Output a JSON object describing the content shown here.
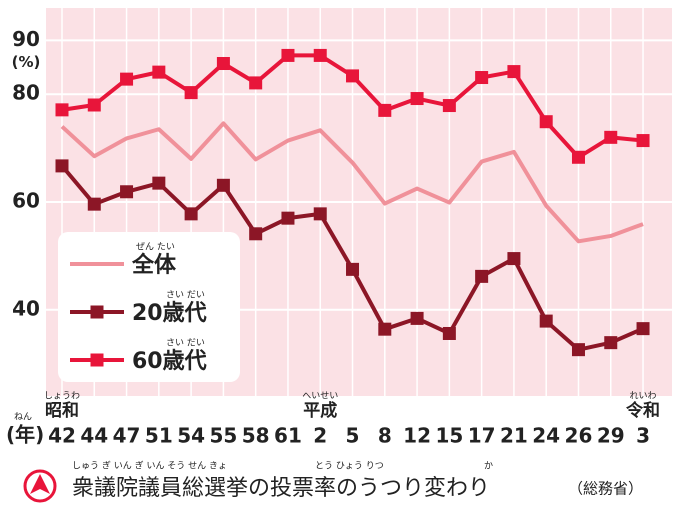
{
  "chart_data": {
    "type": "line",
    "title": "衆議院議員総選挙の投票率のうつり変わり",
    "title_ruby": [
      "しゅう ぎ いん ぎ いん そう せん きょ",
      "とう ひょう りつ",
      "か"
    ],
    "source": "（総務省）",
    "y_unit": "(%)",
    "x_unit": "(年)",
    "x_unit_ruby": "ねん",
    "eras": [
      {
        "index": 0,
        "label": "昭和",
        "ruby": "しょうわ"
      },
      {
        "index": 8,
        "label": "平成",
        "ruby": "へいせい"
      },
      {
        "index": 18,
        "label": "令和",
        "ruby": "れいわ"
      }
    ],
    "categories": [
      "42",
      "44",
      "47",
      "51",
      "54",
      "55",
      "58",
      "61",
      "2",
      "5",
      "8",
      "12",
      "15",
      "17",
      "21",
      "24",
      "26",
      "29",
      "3"
    ],
    "ylim": [
      24,
      96
    ],
    "yticks": [
      40,
      60,
      80,
      90
    ],
    "series": [
      {
        "name": "全体",
        "ruby": "ぜん たい",
        "color": "#f0919a",
        "marker": false,
        "values": [
          74.0,
          68.5,
          71.8,
          73.5,
          68.0,
          74.6,
          67.9,
          71.4,
          73.3,
          67.3,
          59.7,
          62.5,
          59.9,
          67.5,
          69.3,
          59.3,
          52.7,
          53.7,
          55.9
        ]
      },
      {
        "name": "20歳代",
        "ruby": "さい だい",
        "color": "#8c1626",
        "marker": true,
        "values": [
          66.7,
          59.6,
          61.9,
          63.5,
          57.8,
          63.1,
          54.1,
          57.0,
          57.8,
          47.5,
          36.4,
          38.4,
          35.6,
          46.2,
          49.5,
          37.9,
          32.6,
          33.9,
          36.5
        ]
      },
      {
        "name": "60歳代",
        "ruby": "さい だい",
        "color": "#e8153a",
        "marker": true,
        "values": [
          77.1,
          78.0,
          82.8,
          84.1,
          80.3,
          85.7,
          82.1,
          87.2,
          87.2,
          83.4,
          77.0,
          79.2,
          77.9,
          83.1,
          84.2,
          74.9,
          68.3,
          72.0,
          71.4
        ]
      }
    ]
  }
}
